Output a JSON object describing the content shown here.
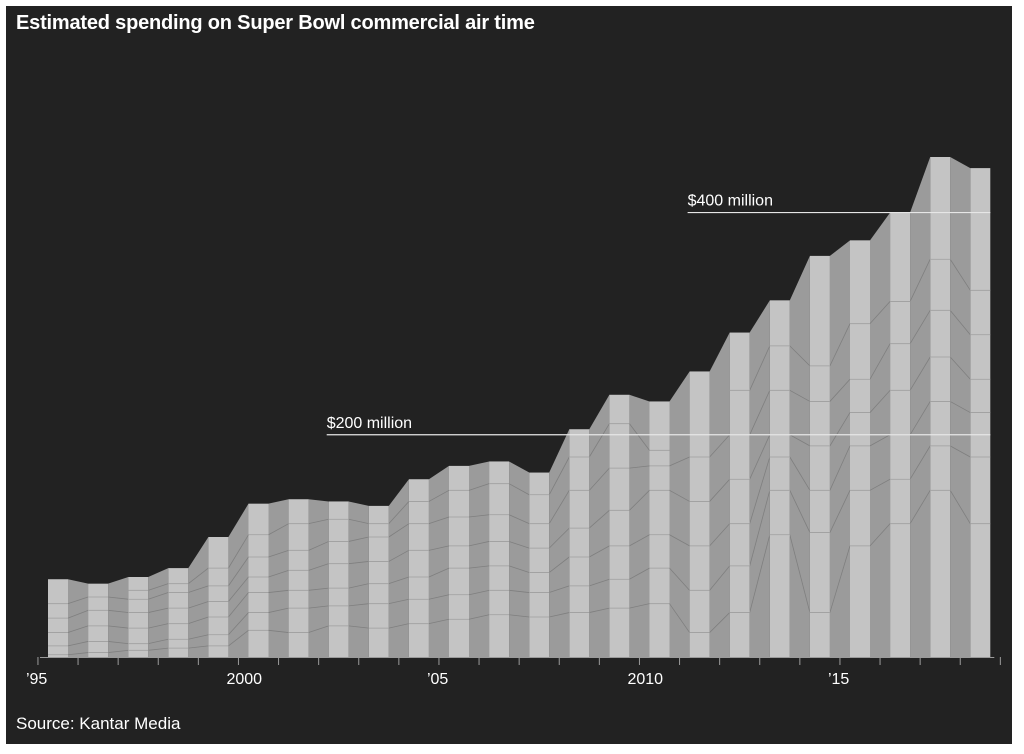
{
  "title": "Estimated spending on Super Bowl commercial air time",
  "source": "Source: Kantar Media",
  "colors": {
    "background": "#222222",
    "bar": "#c4c4c4",
    "band": "#9b9b9b",
    "text": "#ffffff",
    "axis": "#9a9a9a"
  },
  "chart_data": {
    "type": "area",
    "title": "Estimated spending on Super Bowl commercial air time",
    "xlabel": "",
    "ylabel": "",
    "x": [
      1995,
      1996,
      1997,
      1998,
      1999,
      2000,
      2001,
      2002,
      2003,
      2004,
      2005,
      2006,
      2007,
      2008,
      2009,
      2010,
      2011,
      2012,
      2013,
      2014,
      2015,
      2016,
      2017,
      2018
    ],
    "values": [
      70,
      66,
      72,
      80,
      108,
      138,
      142,
      140,
      136,
      160,
      172,
      176,
      166,
      205,
      236,
      230,
      257,
      292,
      321,
      361,
      375,
      400,
      450,
      440
    ],
    "unit": "$ million",
    "ylim": [
      0,
      450
    ],
    "x_tick_labels": [
      {
        "x": 1995,
        "label": "’95"
      },
      {
        "x": 2000,
        "label": "2000"
      },
      {
        "x": 2005,
        "label": "’05"
      },
      {
        "x": 2010,
        "label": "2010"
      },
      {
        "x": 2015,
        "label": "’15"
      }
    ],
    "reference_lines": [
      {
        "value": 200,
        "label": "$200 million",
        "from_x": 2002
      },
      {
        "value": 400,
        "label": "$400 million",
        "from_x": 2011
      }
    ],
    "segment_lines": [
      [
        2,
        10,
        22,
        35,
        48
      ],
      [
        4,
        14,
        28,
        42,
        54
      ],
      [
        6,
        12,
        26,
        40,
        52,
        60
      ],
      [
        8,
        16,
        30,
        44,
        58,
        66
      ],
      [
        10,
        20,
        36,
        50,
        64,
        80
      ],
      [
        24,
        40,
        58,
        72,
        90,
        110
      ],
      [
        22,
        44,
        60,
        78,
        96,
        120
      ],
      [
        28,
        46,
        62,
        84,
        104,
        124
      ],
      [
        26,
        48,
        66,
        86,
        108,
        120
      ],
      [
        30,
        52,
        72,
        96,
        120,
        140
      ],
      [
        34,
        56,
        80,
        100,
        126,
        150
      ],
      [
        38,
        60,
        82,
        104,
        128,
        156
      ],
      [
        36,
        58,
        76,
        98,
        120,
        146
      ],
      [
        40,
        64,
        90,
        116,
        150,
        180
      ],
      [
        44,
        70,
        100,
        132,
        170,
        210
      ],
      [
        48,
        80,
        110,
        150,
        172,
        186
      ],
      [
        22,
        60,
        100,
        140,
        180
      ],
      [
        40,
        82,
        120,
        160,
        200,
        240
      ],
      [
        110,
        150,
        180,
        200,
        240,
        280
      ],
      [
        40,
        112,
        150,
        190,
        230,
        262
      ],
      [
        100,
        150,
        190,
        220,
        250,
        300
      ],
      [
        120,
        160,
        200,
        240,
        282,
        320
      ],
      [
        150,
        190,
        230,
        270,
        312,
        358
      ],
      [
        120,
        180,
        220,
        250,
        290,
        330
      ]
    ],
    "grid": false,
    "legend": "none"
  }
}
